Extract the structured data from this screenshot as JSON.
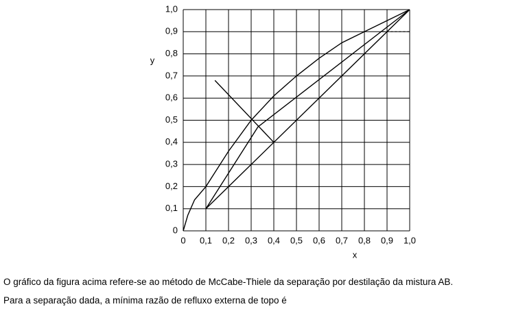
{
  "chart_data": {
    "type": "line",
    "x_label": "x",
    "y_label": "y",
    "grid": true,
    "xlim": [
      0,
      1.0
    ],
    "ylim": [
      0,
      1.0
    ],
    "xticks": [
      0,
      {
        "value": 0.1,
        "label": "0,1"
      },
      {
        "value": 0.2,
        "label": "0,2"
      },
      {
        "value": 0.3,
        "label": "0,3"
      },
      {
        "value": 0.4,
        "label": "0,4"
      },
      {
        "value": 0.5,
        "label": "0,5"
      },
      {
        "value": 0.6,
        "label": "0,6"
      },
      {
        "value": 0.7,
        "label": "0,7"
      },
      {
        "value": 0.8,
        "label": "0,8"
      },
      {
        "value": 0.9,
        "label": "0,9"
      },
      {
        "value": 1.0,
        "label": "1,0"
      }
    ],
    "yticks": [
      0,
      {
        "value": 0.1,
        "label": "0,1"
      },
      {
        "value": 0.2,
        "label": "0,2"
      },
      {
        "value": 0.3,
        "label": "0,3"
      },
      {
        "value": 0.4,
        "label": "0,4"
      },
      {
        "value": 0.5,
        "label": "0,5"
      },
      {
        "value": 0.6,
        "label": "0,6"
      },
      {
        "value": 0.7,
        "label": "0,7"
      },
      {
        "value": 0.8,
        "label": "0,8"
      },
      {
        "value": 0.9,
        "label": "0,9"
      },
      {
        "value": 1.0,
        "label": "1,0"
      }
    ],
    "series": [
      {
        "color": "#000",
        "style": "solid",
        "x": [
          0,
          0.02,
          0.05,
          0.1,
          0.2,
          0.3,
          0.4,
          0.5,
          0.6,
          0.7,
          0.8,
          0.9,
          1.0
        ],
        "values": [
          0,
          0.07,
          0.14,
          0.2,
          0.36,
          0.5,
          0.61,
          0.7,
          0.78,
          0.85,
          0.9,
          0.95,
          1.0
        ]
      },
      {
        "color": "#000",
        "style": "solid",
        "x": [
          0.1,
          1.0
        ],
        "values": [
          0.1,
          1.0
        ]
      },
      {
        "color": "#000",
        "style": "solid",
        "x": [
          0.1,
          0.33,
          1.0
        ],
        "values": [
          0.1,
          0.47,
          1.0
        ]
      },
      {
        "color": "#000",
        "style": "solid",
        "x": [
          0.14,
          0.4
        ],
        "values": [
          0.68,
          0.4
        ]
      },
      {
        "color": "#000",
        "style": "dashed",
        "x": [
          0.1,
          0.1
        ],
        "values": [
          0,
          0.1
        ]
      },
      {
        "color": "#000",
        "style": "dashed",
        "x": [
          0.4,
          0.4
        ],
        "values": [
          0,
          0.4
        ]
      },
      {
        "color": "#000",
        "style": "dashed",
        "x": [
          0.88,
          1.0
        ],
        "values": [
          0.9,
          0.9
        ]
      }
    ]
  },
  "caption": [
    "O gráfico da figura acima refere-se ao método de McCabe-Thiele da separação por destilação da mistura AB.",
    "Para a separação dada, a mínima razão de refluxo externa de topo é"
  ]
}
